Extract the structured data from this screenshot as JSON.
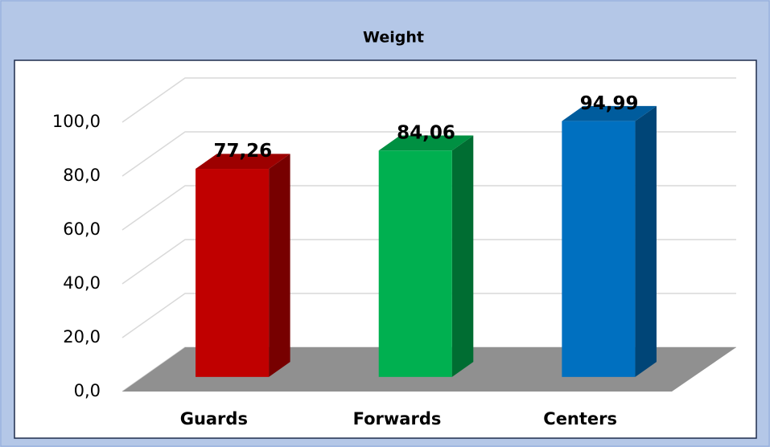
{
  "chart_data": {
    "type": "bar3d",
    "title": "Weight",
    "categories": [
      "Guards",
      "Forwards",
      "Centers"
    ],
    "values": [
      77.26,
      84.06,
      94.99
    ],
    "value_labels": [
      "77,26",
      "84,06",
      "94,99"
    ],
    "colors": [
      "#c00000",
      "#00b050",
      "#0070c0"
    ],
    "ylim": [
      0,
      100
    ],
    "yticks": [
      {
        "value": 0,
        "label": "0,0"
      },
      {
        "value": 20,
        "label": "20,0"
      },
      {
        "value": 40,
        "label": "40,0"
      },
      {
        "value": 60,
        "label": "60,0"
      },
      {
        "value": 80,
        "label": "80,0"
      },
      {
        "value": 100,
        "label": "100,0"
      }
    ],
    "grid": true
  }
}
